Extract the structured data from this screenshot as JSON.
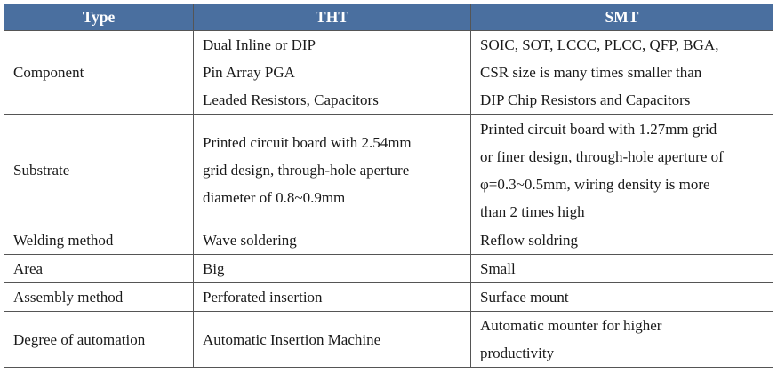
{
  "headers": {
    "type": "Type",
    "tht": "THT",
    "smt": "SMT"
  },
  "rows": [
    {
      "label": "Component",
      "tht": [
        "Dual Inline or DIP",
        "Pin Array PGA",
        "Leaded Resistors, Capacitors"
      ],
      "smt": [
        "SOIC, SOT, LCCC, PLCC, QFP, BGA,",
        "CSR size is many times smaller than",
        "DIP Chip Resistors and Capacitors"
      ]
    },
    {
      "label": "Substrate",
      "tht": [
        "Printed circuit board with 2.54mm",
        "grid design, through-hole aperture",
        "diameter of 0.8~0.9mm"
      ],
      "smt": [
        "Printed circuit board with 1.27mm grid",
        "or finer design, through-hole aperture of",
        "φ=0.3~0.5mm, wiring density is more",
        "than 2 times high"
      ]
    },
    {
      "label": "Welding method",
      "tht": [
        "Wave soldering"
      ],
      "smt": [
        "Reflow soldring"
      ]
    },
    {
      "label": "Area",
      "tht": [
        "Big"
      ],
      "smt": [
        "Small"
      ]
    },
    {
      "label": "Assembly method",
      "tht": [
        "Perforated insertion"
      ],
      "smt": [
        "Surface mount"
      ]
    },
    {
      "label": "Degree of automation",
      "tht": [
        "Automatic Insertion Machine"
      ],
      "smt": [
        "Automatic mounter for higher",
        "productivity"
      ]
    }
  ]
}
